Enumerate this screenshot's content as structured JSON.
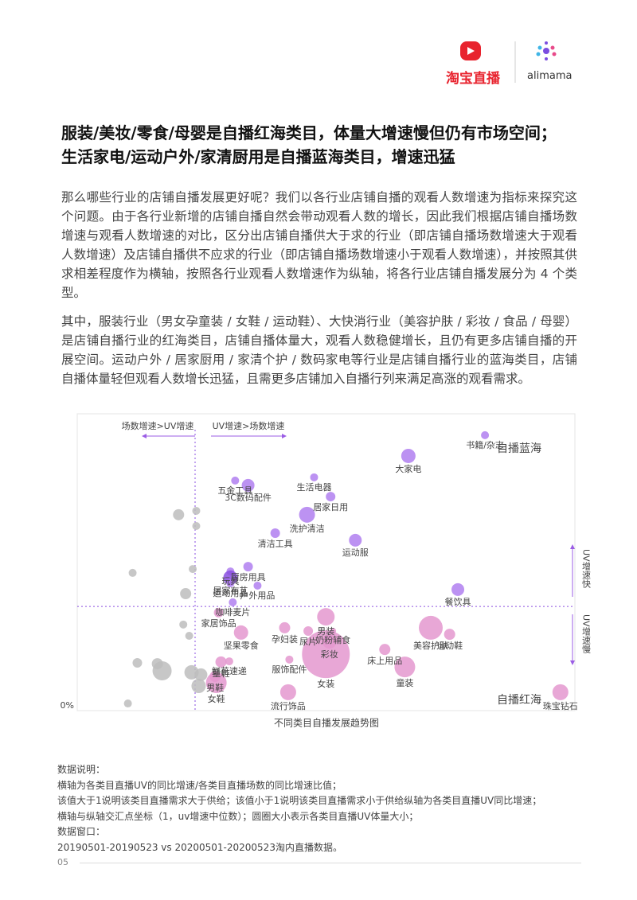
{
  "header": {
    "brand": "淘宝直播",
    "partner": "alimama"
  },
  "heading": [
    "服装/美妆/零食/母婴是自播红海类目，体量大增速慢但仍有市场空间；",
    "生活家电/运动户外/家清厨用是自播蓝海类目，增速迅猛"
  ],
  "paragraphs": [
    "那么哪些行业的店铺自播发展更好呢？我们以各行业店铺自播的观看人数增速为指标来探究这个问题。由于各行业新增的店铺自播自然会带动观看人数的增长，因此我们根据店铺自播场数增速与观看人数增速的对比，区分出店铺自播供大于求的行业（即店铺自播场数增速大于观看人数增速）及店铺自播供不应求的行业（即店铺自播场数增速小于观看人数增速），并按照其供求相差程度作为横轴，按照各行业观看人数增速作为纵轴，将各行业店铺自播发展分为 4 个类型。",
    "其中，服装行业（男女孕童装 / 女鞋 / 运动鞋）、大快消行业（美容护肤 / 彩妆 / 食品 / 母婴）是店铺自播行业的红海类目，店铺自播体量大，观看人数稳健增长，且仍有更多店铺自播的开展空间。运动户外 / 居家厨用 / 家清个护 / 数码家电等行业是店铺自播行业的蓝海类目，店铺自播体量轻但观看人数增长迅猛，且需更多店铺加入自播行列来满足高涨的观看需求。"
  ],
  "chart_data": {
    "type": "bubble",
    "caption": "不同类目自播发展趋势图",
    "xlim": [
      0,
      4.2
    ],
    "ylim": [
      0,
      100
    ],
    "yticks": [
      {
        "value": 0,
        "label": "0%"
      }
    ],
    "x_reference": 1,
    "y_reference": 35.1,
    "annotations": {
      "left_arrow": "场数增速>UV增速",
      "right_arrow": "UV增速>场数增速",
      "up_arrow": "UV增速快",
      "down_arrow": "UV增速慢",
      "blue_ocean": "自播蓝海",
      "red_ocean": "自播红海"
    },
    "annotation_colors": {
      "blue_ocean": "#9b5de5",
      "red_ocean": "#d6539e"
    },
    "points": [
      {
        "label": "书籍/杂志",
        "x": 3.46,
        "y": 92.8,
        "size": 25,
        "color": "#b07ff0"
      },
      {
        "label": "大家电",
        "x": 2.81,
        "y": 85.8,
        "size": 81,
        "color": "#b07ff0"
      },
      {
        "label": "生活电器",
        "x": 2.01,
        "y": 78.6,
        "size": 25,
        "color": "#b07ff0"
      },
      {
        "label": "五金工具",
        "x": 1.34,
        "y": 77.5,
        "size": 25,
        "color": "#b07ff0"
      },
      {
        "label": "3C数码配件",
        "x": 1.45,
        "y": 75.9,
        "size": 64,
        "color": "#b07ff0"
      },
      {
        "label": "居家日用",
        "x": 2.15,
        "y": 72.1,
        "size": 36,
        "color": "#b07ff0"
      },
      {
        "label": "洗护清洁",
        "x": 1.95,
        "y": 66.0,
        "size": 100,
        "color": "#b07ff0"
      },
      {
        "label": "清洁工具",
        "x": 1.68,
        "y": 59.8,
        "size": 36,
        "color": "#b07ff0"
      },
      {
        "label": "运动服",
        "x": 2.36,
        "y": 57.4,
        "size": 64,
        "color": "#b07ff0"
      },
      {
        "label": "厨房用具",
        "x": 1.45,
        "y": 48.5,
        "size": 36,
        "color": "#b07ff0"
      },
      {
        "label": "玩具",
        "x": 1.3,
        "y": 46.9,
        "size": 25,
        "color": "#b07ff0"
      },
      {
        "label": "居家布艺",
        "x": 1.3,
        "y": 44.8,
        "size": 81,
        "color": "#8a4fe0"
      },
      {
        "label": "运动用品",
        "x": 1.3,
        "y": 42.9,
        "size": 25,
        "color": "#b07ff0"
      },
      {
        "label": "户外用品",
        "x": 1.53,
        "y": 42.1,
        "size": 25,
        "color": "#b07ff0"
      },
      {
        "label": "咖啡麦片",
        "x": 1.32,
        "y": 36.5,
        "size": 25,
        "color": "#b07ff0"
      },
      {
        "label": "餐饮具",
        "x": 3.23,
        "y": 40.8,
        "size": 64,
        "color": "#b07ff0"
      },
      {
        "label": "家居饰品",
        "x": 1.2,
        "y": 33.0,
        "size": 36,
        "color": "#e498cf"
      },
      {
        "label": "坚果零食",
        "x": 1.39,
        "y": 26.3,
        "size": 81,
        "color": "#e498cf"
      },
      {
        "label": "童鞋",
        "x": 1.22,
        "y": 16.4,
        "size": 49,
        "color": "#e498cf"
      },
      {
        "label": "鲜花速递",
        "x": 1.29,
        "y": 16.6,
        "size": 25,
        "color": "#e498cf"
      },
      {
        "label": "男鞋",
        "x": 1.17,
        "y": 11.5,
        "size": 49,
        "color": "#e498cf"
      },
      {
        "label": "女鞋",
        "x": 1.18,
        "y": 9.4,
        "size": 169,
        "color": "#e498cf"
      },
      {
        "label": "流行饰品",
        "x": 1.79,
        "y": 6.2,
        "size": 100,
        "color": "#e498cf"
      },
      {
        "label": "服饰配件",
        "x": 1.8,
        "y": 17.2,
        "size": 25,
        "color": "#e498cf"
      },
      {
        "label": "孕妇装",
        "x": 1.76,
        "y": 27.9,
        "size": 49,
        "color": "#e498cf"
      },
      {
        "label": "尿片",
        "x": 1.96,
        "y": 26.8,
        "size": 36,
        "color": "#e498cf"
      },
      {
        "label": "男装",
        "x": 2.11,
        "y": 31.6,
        "size": 121,
        "color": "#e498cf"
      },
      {
        "label": "奶粉辅食",
        "x": 2.17,
        "y": 26.8,
        "size": 16,
        "color": "#e498cf"
      },
      {
        "label": "彩妆",
        "x": 2.14,
        "y": 23.3,
        "size": 81,
        "color": "#e498cf"
      },
      {
        "label": "女装",
        "x": 2.11,
        "y": 19.0,
        "size": 900,
        "color": "#e498cf"
      },
      {
        "label": "床上用品",
        "x": 2.61,
        "y": 20.6,
        "size": 49,
        "color": "#e498cf"
      },
      {
        "label": "童装",
        "x": 2.78,
        "y": 14.7,
        "size": 169,
        "color": "#e498cf"
      },
      {
        "label": "美容护肤",
        "x": 3.0,
        "y": 27.9,
        "size": 225,
        "color": "#e498cf"
      },
      {
        "label": "运动鞋",
        "x": 3.16,
        "y": 25.7,
        "size": 49,
        "color": "#e498cf"
      },
      {
        "label": "珠宝钻石",
        "x": 4.1,
        "y": 6.2,
        "size": 100,
        "color": "#e498cf"
      },
      {
        "label": null,
        "x": 0.86,
        "y": 66.0,
        "size": 49,
        "color": "#bdbdbd"
      },
      {
        "label": null,
        "x": 1.01,
        "y": 67.3,
        "size": 25,
        "color": "#bdbdbd"
      },
      {
        "label": null,
        "x": 1.01,
        "y": 62.2,
        "size": 25,
        "color": "#bdbdbd"
      },
      {
        "label": null,
        "x": 0.47,
        "y": 46.4,
        "size": 25,
        "color": "#bdbdbd"
      },
      {
        "label": null,
        "x": 0.98,
        "y": 47.7,
        "size": 25,
        "color": "#bdbdbd"
      },
      {
        "label": null,
        "x": 0.92,
        "y": 39.4,
        "size": 49,
        "color": "#bdbdbd"
      },
      {
        "label": null,
        "x": 0.9,
        "y": 29.0,
        "size": 25,
        "color": "#bdbdbd"
      },
      {
        "label": null,
        "x": 0.95,
        "y": 25.2,
        "size": 25,
        "color": "#bdbdbd"
      },
      {
        "label": null,
        "x": 0.51,
        "y": 16.1,
        "size": 36,
        "color": "#bdbdbd"
      },
      {
        "label": null,
        "x": 0.68,
        "y": 15.8,
        "size": 49,
        "color": "#bdbdbd"
      },
      {
        "label": null,
        "x": 0.72,
        "y": 13.4,
        "size": 144,
        "color": "#bdbdbd"
      },
      {
        "label": null,
        "x": 0.97,
        "y": 12.9,
        "size": 81,
        "color": "#bdbdbd"
      },
      {
        "label": null,
        "x": 1.05,
        "y": 12.1,
        "size": 64,
        "color": "#bdbdbd"
      },
      {
        "label": null,
        "x": 1.03,
        "y": 8.3,
        "size": 81,
        "color": "#bdbdbd"
      },
      {
        "label": null,
        "x": 0.43,
        "y": 2.4,
        "size": 25,
        "color": "#bdbdbd"
      }
    ]
  },
  "notes": [
    "数据说明：",
    "横轴为各类目直播UV的同比增速/各类目直播场数的同比增速比值；",
    "该值大于1说明该类目直播需求大于供给；该值小于1说明该类目直播需求小于供给纵轴为各类目直播UV同比增速；",
    "横轴与纵轴交汇点坐标（1，uv增速中位数）；圆圈大小表示各类目直播UV体量大小；",
    "数据窗口：",
    "20190501-20190523 vs 20200501-20200523淘内直播数据。"
  ],
  "page_number": "05"
}
